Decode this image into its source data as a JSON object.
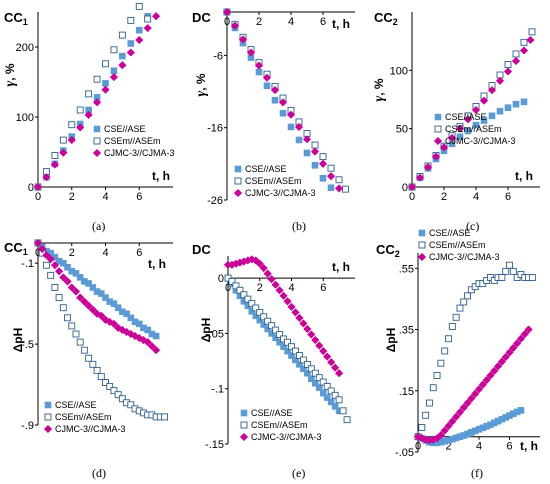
{
  "colors": {
    "square": "#5b9bd5",
    "open": "#2e5f8e",
    "diamond": "#cc0099",
    "axis": "#000000"
  },
  "legend_labels": [
    "CSE//ASE",
    "CSEm//ASEm",
    "CJMC-3//CJMA-3"
  ],
  "chart_data": [
    {
      "type": "scatter",
      "panel_label": "(a)",
      "title_main": "CC",
      "title_sub": "1",
      "ylabel_main": "γ",
      "ylabel_unit": ", %",
      "xlabel": "t, h",
      "xlim": [
        0,
        8
      ],
      "ylim": [
        0,
        250
      ],
      "xticks": [
        0,
        2,
        4,
        6
      ],
      "yticks": [
        0,
        100,
        200
      ],
      "legend": "bottom-right",
      "series": [
        {
          "name": "CSE//ASE",
          "marker": "square-filled",
          "x": [
            0,
            0.5,
            1,
            1.5,
            2,
            2.5,
            3,
            3.5,
            4,
            4.5,
            5,
            5.5,
            6,
            6.5
          ],
          "y": [
            0,
            14,
            33,
            52,
            72,
            90,
            110,
            128,
            148,
            166,
            187,
            205,
            224,
            244
          ]
        },
        {
          "name": "CSEm//ASEm",
          "marker": "square-open",
          "x": [
            0,
            0.5,
            1,
            1.5,
            2,
            2.5,
            3,
            3.5,
            4,
            4.5,
            5,
            5.5,
            6,
            6.5
          ],
          "y": [
            0,
            22,
            45,
            67,
            89,
            110,
            133,
            154,
            176,
            196,
            217,
            238,
            258,
            240
          ]
        },
        {
          "name": "CJMC-3//CJMA-3",
          "marker": "diamond",
          "x": [
            0,
            0.5,
            1,
            1.5,
            2,
            2.5,
            3,
            3.5,
            4,
            4.5,
            5,
            5.5,
            6,
            6.5,
            7
          ],
          "y": [
            0,
            14,
            32,
            49,
            67,
            85,
            103,
            121,
            139,
            157,
            174,
            192,
            210,
            227,
            244
          ]
        }
      ]
    },
    {
      "type": "scatter",
      "panel_label": "(b)",
      "title_main": "DC",
      "title_sub": "",
      "ylabel_main": "γ",
      "ylabel_unit": ", %",
      "xlabel": "t, h",
      "xlim": [
        0,
        8
      ],
      "ylim": [
        -26,
        0
      ],
      "xticks": [
        0,
        2,
        4,
        6
      ],
      "yticks": [
        -6,
        -16,
        -26
      ],
      "legend": "bottom-left",
      "series": [
        {
          "name": "CSE//ASE",
          "marker": "square-filled",
          "x": [
            0,
            0.5,
            1,
            1.5,
            2,
            2.5,
            3,
            3.5,
            4,
            4.5,
            5,
            5.5,
            6,
            6.5
          ],
          "y": [
            0,
            -2.2,
            -4.3,
            -6.3,
            -8.3,
            -10.2,
            -12.2,
            -14,
            -15.9,
            -17.7,
            -19.5,
            -21.2,
            -23,
            -24.3
          ]
        },
        {
          "name": "CSEm//ASEm",
          "marker": "square-open",
          "x": [
            0,
            0.5,
            1,
            1.5,
            2,
            2.5,
            3,
            3.5,
            4,
            4.5,
            5,
            5.5,
            6,
            6.5,
            7,
            7.4
          ],
          "y": [
            0,
            -1.7,
            -3.5,
            -5.2,
            -7,
            -8.6,
            -10.3,
            -11.9,
            -13.6,
            -15.2,
            -16.8,
            -18.4,
            -20,
            -21.6,
            -23.2,
            -24.5
          ]
        },
        {
          "name": "CJMC-3//CJMA-3",
          "marker": "diamond",
          "x": [
            0,
            0.5,
            1,
            1.5,
            2,
            2.5,
            3,
            3.5,
            4,
            4.5,
            5,
            5.5,
            6,
            6.5,
            7
          ],
          "y": [
            0,
            -1.9,
            -3.8,
            -5.6,
            -7.4,
            -9.1,
            -10.8,
            -12.5,
            -14.2,
            -15.9,
            -17.6,
            -19.3,
            -21,
            -22.7,
            -24.4
          ]
        }
      ]
    },
    {
      "type": "scatter",
      "panel_label": "(c)",
      "title_main": "CC",
      "title_sub": "2",
      "ylabel_main": "γ",
      "ylabel_unit": ", %",
      "xlabel": "t, h",
      "xlim": [
        0,
        8
      ],
      "ylim": [
        0,
        150
      ],
      "xticks": [
        0,
        2,
        4,
        6
      ],
      "yticks": [
        0,
        50,
        100
      ],
      "legend": "bottom-right",
      "series": [
        {
          "name": "CSE//ASE",
          "marker": "square-filled",
          "x": [
            0,
            0.5,
            1,
            1.5,
            2,
            2.5,
            3,
            3.5,
            4,
            4.5,
            5,
            5.5,
            6,
            6.5,
            7
          ],
          "y": [
            0,
            8,
            16,
            24,
            31,
            37,
            43,
            48,
            53,
            57,
            61,
            65,
            68,
            71,
            73
          ]
        },
        {
          "name": "CSEm//ASEm",
          "marker": "square-open",
          "x": [
            0,
            0.5,
            1,
            1.5,
            2,
            2.5,
            3,
            3.5,
            4,
            4.5,
            5,
            5.5,
            6,
            6.5,
            7,
            7.5
          ],
          "y": [
            0,
            9,
            18,
            27,
            35,
            44,
            52,
            61,
            69,
            78,
            87,
            96,
            105,
            114,
            124,
            133
          ]
        },
        {
          "name": "CJMC-3//CJMA-3",
          "marker": "diamond",
          "x": [
            0,
            0.5,
            1,
            1.5,
            2,
            2.5,
            3,
            3.5,
            4,
            4.5,
            5,
            5.5,
            6,
            6.5,
            7,
            7.4
          ],
          "y": [
            0,
            8,
            17,
            26,
            34,
            42,
            50,
            58,
            66,
            74,
            83,
            91,
            99,
            108,
            117,
            126
          ]
        }
      ]
    },
    {
      "type": "scatter",
      "panel_label": "(d)",
      "title_main": "CC",
      "title_sub": "1",
      "ylabel_main": "ΔpH",
      "ylabel_unit": "",
      "xlabel": "t, h",
      "xlim": [
        0,
        8
      ],
      "ylim": [
        -0.9,
        0
      ],
      "xticks": [
        0,
        2,
        4,
        6
      ],
      "yticks": [
        -0.1,
        -0.5,
        -0.9
      ],
      "legend": "bottom-left",
      "series": [
        {
          "name": "CSE//ASE",
          "marker": "square-filled",
          "x": [
            0,
            0.25,
            0.5,
            0.75,
            1,
            1.25,
            1.5,
            1.75,
            2,
            2.25,
            2.5,
            2.75,
            3,
            3.25,
            3.5,
            3.75,
            4,
            4.25,
            4.5,
            4.75,
            5,
            5.25,
            5.5,
            5.75,
            6,
            6.25,
            6.5,
            6.75,
            7
          ],
          "y": [
            0,
            -0.02,
            -0.04,
            -0.05,
            -0.07,
            -0.09,
            -0.1,
            -0.12,
            -0.14,
            -0.15,
            -0.17,
            -0.19,
            -0.2,
            -0.22,
            -0.24,
            -0.25,
            -0.27,
            -0.29,
            -0.3,
            -0.32,
            -0.34,
            -0.35,
            -0.37,
            -0.39,
            -0.4,
            -0.42,
            -0.43,
            -0.45,
            -0.46
          ]
        },
        {
          "name": "CSEm//ASEm",
          "marker": "square-open",
          "x": [
            0,
            0.25,
            0.5,
            0.75,
            1,
            1.25,
            1.5,
            1.75,
            2,
            2.25,
            2.5,
            2.75,
            3,
            3.25,
            3.5,
            3.75,
            4,
            4.25,
            4.5,
            4.75,
            5,
            5.25,
            5.5,
            5.75,
            6,
            6.25,
            6.5,
            6.75,
            7,
            7.25,
            7.5
          ],
          "y": [
            0,
            -0.05,
            -0.11,
            -0.16,
            -0.22,
            -0.27,
            -0.32,
            -0.37,
            -0.41,
            -0.45,
            -0.49,
            -0.53,
            -0.57,
            -0.6,
            -0.63,
            -0.66,
            -0.69,
            -0.71,
            -0.73,
            -0.75,
            -0.77,
            -0.79,
            -0.8,
            -0.82,
            -0.83,
            -0.84,
            -0.85,
            -0.85,
            -0.86,
            -0.86,
            -0.86
          ]
        },
        {
          "name": "CJMC-3//CJMA-3",
          "marker": "diamond",
          "x": [
            0,
            0.25,
            0.5,
            0.75,
            1,
            1.25,
            1.5,
            1.75,
            2,
            2.25,
            2.5,
            2.75,
            3,
            3.25,
            3.5,
            3.75,
            4,
            4.25,
            4.5,
            4.75,
            5,
            5.25,
            5.5,
            5.75,
            6,
            6.25,
            6.5,
            6.75,
            7
          ],
          "y": [
            0,
            -0.03,
            -0.06,
            -0.08,
            -0.11,
            -0.14,
            -0.17,
            -0.19,
            -0.22,
            -0.24,
            -0.27,
            -0.29,
            -0.31,
            -0.33,
            -0.35,
            -0.36,
            -0.38,
            -0.39,
            -0.4,
            -0.42,
            -0.43,
            -0.44,
            -0.45,
            -0.46,
            -0.47,
            -0.48,
            -0.49,
            -0.51,
            -0.53
          ]
        }
      ]
    },
    {
      "type": "scatter",
      "panel_label": "(e)",
      "title_main": "DC",
      "title_sub": "",
      "ylabel_main": "ΔpH",
      "ylabel_unit": "",
      "xlabel": "t, h",
      "xlim": [
        0,
        8
      ],
      "ylim": [
        -0.15,
        0.02
      ],
      "xticks": [
        0,
        2,
        4,
        6
      ],
      "yticks": [
        0,
        -0.05,
        -0.1,
        -0.15
      ],
      "legend": "bottom-left",
      "series": [
        {
          "name": "CSE//ASE",
          "marker": "square-filled",
          "x": [
            0,
            0.25,
            0.5,
            0.75,
            1,
            1.25,
            1.5,
            1.75,
            2,
            2.25,
            2.5,
            2.75,
            3,
            3.25,
            3.5,
            3.75,
            4,
            4.25,
            4.5,
            4.75,
            5,
            5.25,
            5.5,
            5.75,
            6,
            6.25,
            6.5,
            6.75,
            7
          ],
          "y": [
            0,
            -0.005,
            -0.011,
            -0.016,
            -0.021,
            -0.025,
            -0.03,
            -0.034,
            -0.038,
            -0.042,
            -0.046,
            -0.05,
            -0.054,
            -0.058,
            -0.062,
            -0.066,
            -0.07,
            -0.074,
            -0.078,
            -0.082,
            -0.086,
            -0.091,
            -0.095,
            -0.099,
            -0.104,
            -0.108,
            -0.112,
            -0.116,
            -0.12
          ]
        },
        {
          "name": "CSEm//ASEm",
          "marker": "square-open",
          "x": [
            0,
            0.25,
            0.5,
            0.75,
            1,
            1.25,
            1.5,
            1.75,
            2,
            2.25,
            2.5,
            2.75,
            3,
            3.25,
            3.5,
            3.75,
            4,
            4.25,
            4.5,
            4.75,
            5,
            5.25,
            5.5,
            5.75,
            6,
            6.25,
            6.5,
            6.75,
            7,
            7.25,
            7.5
          ],
          "y": [
            0,
            -0.003,
            -0.007,
            -0.011,
            -0.015,
            -0.019,
            -0.023,
            -0.027,
            -0.031,
            -0.035,
            -0.039,
            -0.043,
            -0.047,
            -0.051,
            -0.055,
            -0.058,
            -0.062,
            -0.066,
            -0.07,
            -0.074,
            -0.078,
            -0.082,
            -0.086,
            -0.09,
            -0.094,
            -0.098,
            -0.102,
            -0.106,
            -0.11,
            -0.12,
            -0.128
          ]
        },
        {
          "name": "CJMC-3//CJMA-3",
          "marker": "diamond",
          "x": [
            0,
            0.25,
            0.5,
            0.75,
            1,
            1.25,
            1.5,
            1.75,
            2,
            2.25,
            2.5,
            2.75,
            3,
            3.25,
            3.5,
            3.75,
            4,
            4.25,
            4.5,
            4.75,
            5,
            5.25,
            5.5,
            5.75,
            6,
            6.25,
            6.5,
            6.75,
            7
          ],
          "y": [
            0.012,
            0.012,
            0.013,
            0.014,
            0.015,
            0.016,
            0.017,
            0.016,
            0.013,
            0.009,
            0.004,
            -0.001,
            -0.006,
            -0.011,
            -0.016,
            -0.021,
            -0.026,
            -0.031,
            -0.036,
            -0.041,
            -0.046,
            -0.051,
            -0.056,
            -0.061,
            -0.066,
            -0.071,
            -0.076,
            -0.081,
            -0.086
          ]
        }
      ]
    },
    {
      "type": "scatter",
      "panel_label": "(f)",
      "title_main": "CC",
      "title_sub": "2",
      "ylabel_main": "ΔpH",
      "ylabel_unit": "",
      "xlabel": "t, h",
      "xlim": [
        0,
        8
      ],
      "ylim": [
        -0.05,
        0.6
      ],
      "xticks": [
        0,
        2,
        4,
        6
      ],
      "yticks": [
        -0.05,
        0.15,
        0.35,
        0.55
      ],
      "legend": "top-left",
      "series": [
        {
          "name": "CSE//ASE",
          "marker": "square-filled",
          "x": [
            0,
            0.25,
            0.5,
            0.75,
            1,
            1.25,
            1.5,
            1.75,
            2,
            2.25,
            2.5,
            2.75,
            3,
            3.25,
            3.5,
            3.75,
            4,
            4.25,
            4.5,
            4.75,
            5,
            5.25,
            5.5,
            5.75,
            6,
            6.25,
            6.5,
            6.75
          ],
          "y": [
            0,
            -0.005,
            -0.012,
            -0.018,
            -0.02,
            -0.02,
            -0.018,
            -0.015,
            -0.012,
            -0.008,
            -0.004,
            0,
            0.004,
            0.009,
            0.014,
            0.019,
            0.024,
            0.029,
            0.034,
            0.039,
            0.045,
            0.051,
            0.057,
            0.063,
            0.069,
            0.075,
            0.081,
            0.086
          ]
        },
        {
          "name": "CSEm//ASEm",
          "marker": "square-open",
          "x": [
            0,
            0.25,
            0.5,
            0.75,
            1,
            1.25,
            1.5,
            1.75,
            2,
            2.25,
            2.5,
            2.75,
            3,
            3.25,
            3.5,
            3.75,
            4,
            4.25,
            4.5,
            4.75,
            5,
            5.25,
            5.5,
            5.75,
            6,
            6.25,
            6.5,
            6.75,
            7,
            7.25,
            7.5
          ],
          "y": [
            0,
            0.03,
            0.07,
            0.11,
            0.16,
            0.2,
            0.24,
            0.28,
            0.32,
            0.36,
            0.39,
            0.42,
            0.44,
            0.46,
            0.48,
            0.49,
            0.5,
            0.5,
            0.51,
            0.52,
            0.51,
            0.52,
            0.52,
            0.54,
            0.56,
            0.54,
            0.52,
            0.53,
            0.52,
            0.52,
            0.52
          ]
        },
        {
          "name": "CJMC-3//CJMA-3",
          "marker": "diamond",
          "x": [
            0,
            0.25,
            0.5,
            0.75,
            1,
            1.25,
            1.5,
            1.75,
            2,
            2.25,
            2.5,
            2.75,
            3,
            3.25,
            3.5,
            3.75,
            4,
            4.25,
            4.5,
            4.75,
            5,
            5.25,
            5.5,
            5.75,
            6,
            6.25,
            6.5,
            6.75,
            7,
            7.25
          ],
          "y": [
            0,
            -0.005,
            -0.01,
            -0.012,
            -0.01,
            -0.005,
            0.005,
            0.02,
            0.035,
            0.05,
            0.065,
            0.08,
            0.095,
            0.11,
            0.125,
            0.14,
            0.155,
            0.17,
            0.185,
            0.2,
            0.215,
            0.23,
            0.245,
            0.26,
            0.275,
            0.29,
            0.305,
            0.32,
            0.335,
            0.35
          ]
        }
      ]
    }
  ]
}
